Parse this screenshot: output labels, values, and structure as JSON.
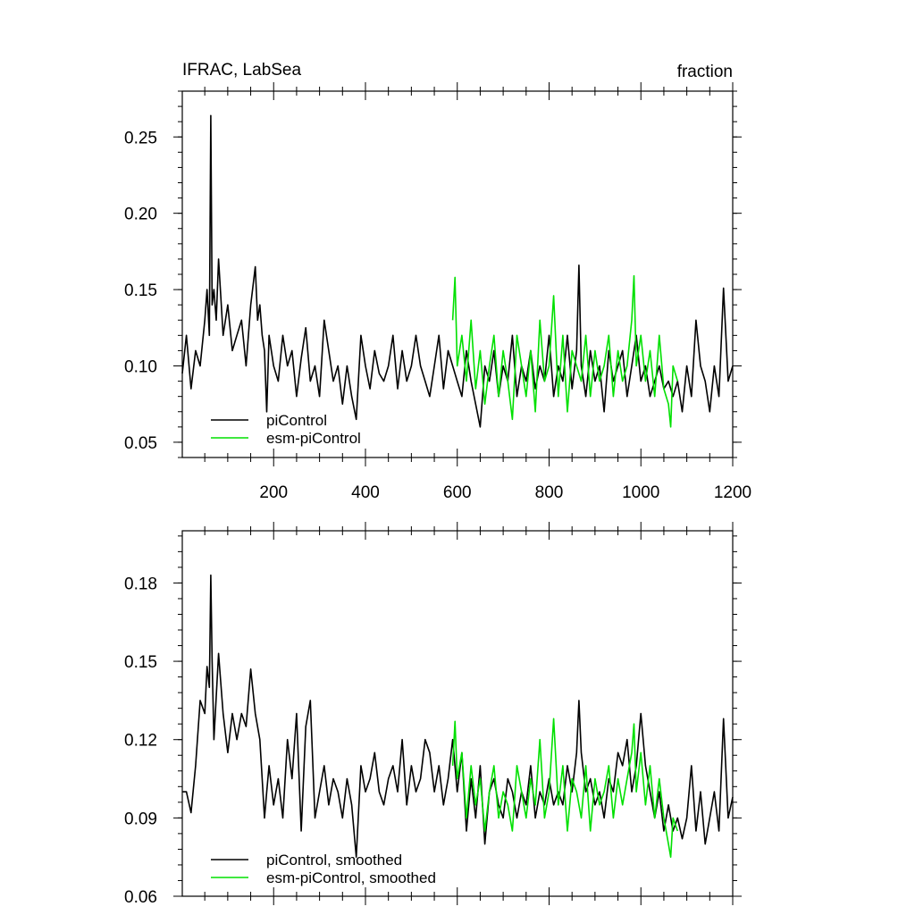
{
  "title_left": "IFRAC, LabSea",
  "title_right": "fraction",
  "colors": {
    "piControl": "#000000",
    "esm-piControl": "#00e000"
  },
  "chart_data": [
    {
      "type": "line",
      "xlim": [
        1,
        1200
      ],
      "ylim": [
        0.04,
        0.28
      ],
      "x_ticks": [
        200,
        400,
        600,
        800,
        1000,
        1200
      ],
      "y_ticks": [
        0.05,
        0.1,
        0.15,
        0.2,
        0.25
      ],
      "legend": [
        "piControl",
        "esm-piControl"
      ],
      "series": [
        {
          "name": "piControl",
          "color_key": "piControl",
          "x": [
            1,
            10,
            20,
            30,
            40,
            50,
            55,
            60,
            63,
            66,
            70,
            75,
            80,
            90,
            100,
            110,
            120,
            130,
            140,
            150,
            160,
            165,
            170,
            175,
            180,
            185,
            190,
            200,
            210,
            220,
            230,
            240,
            250,
            260,
            270,
            280,
            290,
            300,
            310,
            320,
            330,
            340,
            350,
            360,
            370,
            380,
            390,
            400,
            410,
            420,
            430,
            440,
            450,
            460,
            470,
            480,
            490,
            500,
            510,
            520,
            530,
            540,
            550,
            560,
            570,
            580,
            590,
            600,
            610,
            620,
            630,
            640,
            650,
            660,
            670,
            680,
            690,
            700,
            710,
            720,
            730,
            740,
            750,
            760,
            770,
            780,
            790,
            800,
            810,
            820,
            830,
            840,
            850,
            860,
            865,
            870,
            880,
            890,
            900,
            910,
            920,
            930,
            940,
            950,
            960,
            970,
            980,
            990,
            1000,
            1010,
            1020,
            1030,
            1040,
            1050,
            1060,
            1070,
            1080,
            1090,
            1100,
            1110,
            1120,
            1130,
            1140,
            1150,
            1160,
            1170,
            1180,
            1190,
            1200
          ],
          "y": [
            0.095,
            0.12,
            0.085,
            0.11,
            0.1,
            0.13,
            0.15,
            0.12,
            0.264,
            0.14,
            0.15,
            0.13,
            0.17,
            0.12,
            0.14,
            0.11,
            0.12,
            0.13,
            0.1,
            0.14,
            0.165,
            0.13,
            0.14,
            0.12,
            0.11,
            0.07,
            0.12,
            0.1,
            0.09,
            0.12,
            0.1,
            0.11,
            0.08,
            0.105,
            0.125,
            0.09,
            0.1,
            0.08,
            0.13,
            0.11,
            0.09,
            0.1,
            0.075,
            0.1,
            0.08,
            0.065,
            0.12,
            0.1,
            0.085,
            0.11,
            0.095,
            0.09,
            0.1,
            0.12,
            0.085,
            0.11,
            0.09,
            0.1,
            0.12,
            0.1,
            0.09,
            0.08,
            0.1,
            0.12,
            0.085,
            0.11,
            0.1,
            0.09,
            0.08,
            0.11,
            0.09,
            0.075,
            0.06,
            0.1,
            0.09,
            0.11,
            0.08,
            0.1,
            0.09,
            0.12,
            0.08,
            0.1,
            0.09,
            0.11,
            0.085,
            0.1,
            0.09,
            0.12,
            0.08,
            0.1,
            0.09,
            0.12,
            0.085,
            0.11,
            0.166,
            0.1,
            0.08,
            0.11,
            0.09,
            0.1,
            0.07,
            0.11,
            0.09,
            0.1,
            0.11,
            0.08,
            0.1,
            0.12,
            0.09,
            0.1,
            0.08,
            0.09,
            0.1,
            0.085,
            0.09,
            0.08,
            0.09,
            0.07,
            0.1,
            0.08,
            0.13,
            0.1,
            0.09,
            0.07,
            0.1,
            0.08,
            0.151,
            0.09,
            0.1
          ]
        },
        {
          "name": "esm-piControl",
          "color_key": "esm-piControl",
          "x": [
            590,
            595,
            600,
            610,
            620,
            630,
            640,
            650,
            660,
            670,
            680,
            690,
            700,
            710,
            720,
            730,
            740,
            750,
            760,
            770,
            780,
            790,
            800,
            810,
            820,
            830,
            840,
            850,
            860,
            870,
            880,
            890,
            900,
            910,
            920,
            930,
            940,
            950,
            960,
            970,
            980,
            985,
            990,
            1000,
            1010,
            1020,
            1030,
            1040,
            1050,
            1060,
            1065,
            1070,
            1080
          ],
          "y": [
            0.13,
            0.158,
            0.1,
            0.12,
            0.09,
            0.13,
            0.085,
            0.11,
            0.075,
            0.1,
            0.12,
            0.08,
            0.11,
            0.09,
            0.065,
            0.12,
            0.1,
            0.08,
            0.11,
            0.07,
            0.13,
            0.09,
            0.1,
            0.146,
            0.08,
            0.12,
            0.07,
            0.11,
            0.1,
            0.09,
            0.12,
            0.08,
            0.11,
            0.09,
            0.1,
            0.12,
            0.08,
            0.11,
            0.09,
            0.1,
            0.13,
            0.159,
            0.1,
            0.12,
            0.09,
            0.11,
            0.08,
            0.12,
            0.085,
            0.075,
            0.06,
            0.1,
            0.09
          ]
        }
      ]
    },
    {
      "type": "line",
      "xlim": [
        1,
        1200
      ],
      "ylim": [
        0.06,
        0.2
      ],
      "x_ticks": [],
      "y_ticks": [
        0.06,
        0.09,
        0.12,
        0.15,
        0.18
      ],
      "legend": [
        "piControl, smoothed",
        "esm-piControl, smoothed"
      ],
      "series": [
        {
          "name": "piControl, smoothed",
          "color_key": "piControl",
          "x": [
            1,
            10,
            20,
            30,
            40,
            50,
            55,
            60,
            63,
            66,
            70,
            80,
            90,
            100,
            110,
            120,
            130,
            140,
            150,
            160,
            170,
            180,
            185,
            190,
            200,
            210,
            220,
            230,
            240,
            250,
            260,
            270,
            280,
            290,
            300,
            310,
            320,
            330,
            340,
            350,
            360,
            370,
            380,
            390,
            400,
            410,
            420,
            430,
            440,
            450,
            460,
            470,
            480,
            490,
            500,
            510,
            520,
            530,
            540,
            550,
            560,
            570,
            580,
            590,
            600,
            610,
            620,
            630,
            640,
            650,
            660,
            670,
            680,
            690,
            700,
            710,
            720,
            730,
            740,
            750,
            760,
            770,
            780,
            790,
            800,
            810,
            820,
            830,
            840,
            850,
            860,
            865,
            870,
            880,
            890,
            900,
            910,
            920,
            930,
            940,
            950,
            960,
            970,
            980,
            990,
            1000,
            1010,
            1020,
            1030,
            1040,
            1050,
            1060,
            1070,
            1080,
            1090,
            1100,
            1110,
            1120,
            1130,
            1140,
            1150,
            1160,
            1170,
            1180,
            1190,
            1200
          ],
          "y": [
            0.1,
            0.1,
            0.092,
            0.11,
            0.135,
            0.13,
            0.148,
            0.14,
            0.183,
            0.15,
            0.12,
            0.153,
            0.13,
            0.115,
            0.13,
            0.12,
            0.13,
            0.125,
            0.147,
            0.13,
            0.12,
            0.09,
            0.1,
            0.11,
            0.095,
            0.105,
            0.09,
            0.12,
            0.105,
            0.13,
            0.085,
            0.125,
            0.135,
            0.09,
            0.1,
            0.11,
            0.095,
            0.105,
            0.1,
            0.09,
            0.105,
            0.095,
            0.075,
            0.11,
            0.1,
            0.105,
            0.115,
            0.1,
            0.095,
            0.105,
            0.11,
            0.1,
            0.12,
            0.095,
            0.11,
            0.1,
            0.105,
            0.12,
            0.115,
            0.1,
            0.11,
            0.095,
            0.105,
            0.12,
            0.1,
            0.115,
            0.085,
            0.105,
            0.09,
            0.11,
            0.08,
            0.1,
            0.105,
            0.095,
            0.09,
            0.105,
            0.1,
            0.09,
            0.1,
            0.095,
            0.11,
            0.09,
            0.1,
            0.095,
            0.105,
            0.095,
            0.1,
            0.095,
            0.11,
            0.1,
            0.115,
            0.135,
            0.115,
            0.1,
            0.105,
            0.095,
            0.1,
            0.09,
            0.105,
            0.1,
            0.115,
            0.11,
            0.12,
            0.1,
            0.11,
            0.13,
            0.11,
            0.1,
            0.09,
            0.1,
            0.085,
            0.095,
            0.085,
            0.09,
            0.082,
            0.09,
            0.11,
            0.085,
            0.1,
            0.08,
            0.09,
            0.1,
            0.085,
            0.128,
            0.09,
            0.098
          ]
        },
        {
          "name": "esm-piControl, smoothed",
          "color_key": "esm-piControl",
          "x": [
            590,
            595,
            600,
            610,
            620,
            630,
            640,
            650,
            660,
            670,
            680,
            690,
            700,
            710,
            720,
            730,
            740,
            750,
            760,
            770,
            780,
            790,
            800,
            810,
            820,
            830,
            840,
            850,
            860,
            870,
            880,
            890,
            900,
            910,
            920,
            930,
            940,
            950,
            960,
            970,
            980,
            985,
            990,
            1000,
            1010,
            1020,
            1030,
            1040,
            1050,
            1060,
            1065,
            1070,
            1080
          ],
          "y": [
            0.11,
            0.127,
            0.105,
            0.115,
            0.09,
            0.11,
            0.095,
            0.105,
            0.085,
            0.1,
            0.11,
            0.09,
            0.1,
            0.095,
            0.085,
            0.11,
            0.1,
            0.09,
            0.105,
            0.095,
            0.12,
            0.09,
            0.1,
            0.128,
            0.095,
            0.11,
            0.085,
            0.105,
            0.1,
            0.09,
            0.11,
            0.085,
            0.105,
            0.095,
            0.1,
            0.11,
            0.09,
            0.105,
            0.095,
            0.105,
            0.115,
            0.126,
            0.1,
            0.115,
            0.095,
            0.11,
            0.09,
            0.105,
            0.09,
            0.08,
            0.075,
            0.09,
            0.085
          ]
        }
      ]
    }
  ]
}
